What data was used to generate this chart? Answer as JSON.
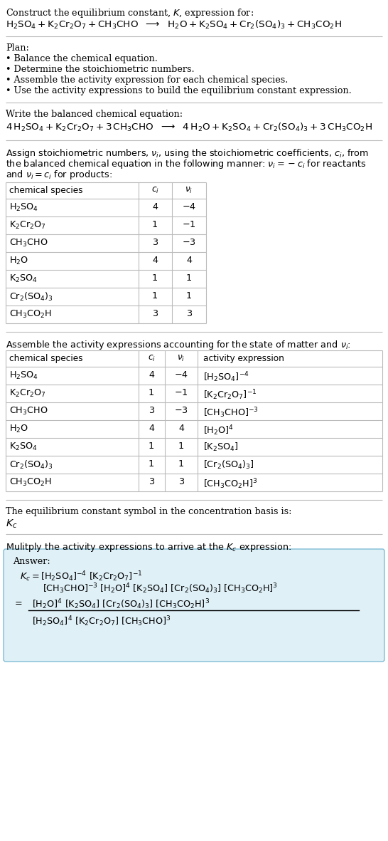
{
  "bg_color": "#ffffff",
  "text_color": "#000000",
  "table_line_color": "#888888",
  "answer_box_bg": "#dff0f7",
  "answer_box_border": "#7fbcd4",
  "font_size": 9.2,
  "title_line1": "Construct the equilibrium constant, $K$, expression for:",
  "plan_header": "Plan:",
  "plan_items": [
    "• Balance the chemical equation.",
    "• Determine the stoichiometric numbers.",
    "• Assemble the activity expression for each chemical species.",
    "• Use the activity expressions to build the equilibrium constant expression."
  ],
  "balanced_header": "Write the balanced chemical equation:",
  "kc_header": "The equilibrium constant symbol in the concentration basis is:",
  "multiply_header": "Mulitply the activity expressions to arrive at the $K_c$ expression:",
  "table1_rows": [
    [
      "$\\mathrm{H_2SO_4}$",
      "4",
      "$-4$"
    ],
    [
      "$\\mathrm{K_2Cr_2O_7}$",
      "1",
      "$-1$"
    ],
    [
      "$\\mathrm{CH_3CHO}$",
      "3",
      "$-3$"
    ],
    [
      "$\\mathrm{H_2O}$",
      "4",
      "4"
    ],
    [
      "$\\mathrm{K_2SO_4}$",
      "1",
      "1"
    ],
    [
      "$\\mathrm{Cr_2(SO_4)_3}$",
      "1",
      "1"
    ],
    [
      "$\\mathrm{CH_3CO_2H}$",
      "3",
      "3"
    ]
  ],
  "table2_rows": [
    [
      "$\\mathrm{H_2SO_4}$",
      "4",
      "$-4$",
      "$[\\mathrm{H_2SO_4}]^{-4}$"
    ],
    [
      "$\\mathrm{K_2Cr_2O_7}$",
      "1",
      "$-1$",
      "$[\\mathrm{K_2Cr_2O_7}]^{-1}$"
    ],
    [
      "$\\mathrm{CH_3CHO}$",
      "3",
      "$-3$",
      "$[\\mathrm{CH_3CHO}]^{-3}$"
    ],
    [
      "$\\mathrm{H_2O}$",
      "4",
      "4",
      "$[\\mathrm{H_2O}]^4$"
    ],
    [
      "$\\mathrm{K_2SO_4}$",
      "1",
      "1",
      "$[\\mathrm{K_2SO_4}]$"
    ],
    [
      "$\\mathrm{Cr_2(SO_4)_3}$",
      "1",
      "1",
      "$[\\mathrm{Cr_2(SO_4)_3}]$"
    ],
    [
      "$\\mathrm{CH_3CO_2H}$",
      "3",
      "3",
      "$[\\mathrm{CH_3CO_2H}]^3$"
    ]
  ]
}
